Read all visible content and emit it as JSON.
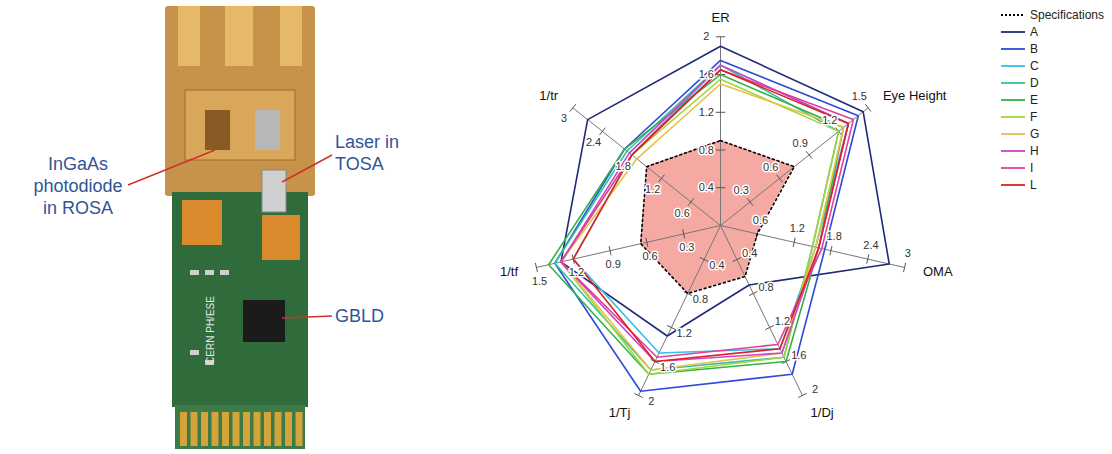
{
  "chart_data": {
    "type": "radar",
    "legend": "right",
    "axes": [
      {
        "label": "ER",
        "lim": [
          0,
          2
        ],
        "ticks": [
          0.4,
          0.8,
          1.2,
          1.6,
          2
        ]
      },
      {
        "label": "Eye Height",
        "lim": [
          0,
          1.5
        ],
        "ticks": [
          0.3,
          0.6,
          0.9,
          1.2,
          1.5
        ]
      },
      {
        "label": "OMA",
        "lim": [
          0,
          3
        ],
        "ticks": [
          0.6,
          1.2,
          1.8,
          2.4,
          3
        ]
      },
      {
        "label": "1/Dj",
        "lim": [
          0,
          2
        ],
        "ticks": [
          0.4,
          0.8,
          1.2,
          1.6,
          2
        ]
      },
      {
        "label": "1/Tj",
        "lim": [
          0,
          2
        ],
        "ticks": [
          0.4,
          0.8,
          1.2,
          1.6,
          2
        ]
      },
      {
        "label": "1/tf",
        "lim": [
          0,
          1.5
        ],
        "ticks": [
          0.3,
          0.6,
          0.9,
          1.2,
          1.5
        ]
      },
      {
        "label": "1/tr",
        "lim": [
          0,
          3
        ],
        "ticks": [
          0.6,
          1.2,
          1.8,
          2.4,
          3
        ]
      }
    ],
    "series": [
      {
        "name": "Specifications",
        "type": "area",
        "color": "#000000",
        "line_style": "dotted",
        "values": [
          0.9,
          0.75,
          0.6,
          0.6,
          0.8,
          0.65,
          1.5
        ]
      },
      {
        "name": "A",
        "color": "#1f2a7a",
        "values": [
          1.9,
          1.45,
          2.75,
          0.7,
          1.3,
          1.3,
          2.7
        ]
      },
      {
        "name": "B",
        "color": "#2c4bd6",
        "values": [
          1.75,
          1.4,
          1.7,
          1.75,
          1.95,
          1.35,
          1.95
        ]
      },
      {
        "name": "C",
        "color": "#33c1e8",
        "values": [
          1.7,
          1.3,
          1.55,
          1.45,
          1.5,
          1.2,
          1.8
        ]
      },
      {
        "name": "D",
        "color": "#2ec4a0",
        "values": [
          1.7,
          1.2,
          1.5,
          1.55,
          1.7,
          1.35,
          1.9
        ]
      },
      {
        "name": "E",
        "color": "#33b24a",
        "values": [
          1.6,
          1.25,
          1.6,
          1.6,
          1.75,
          1.4,
          1.95
        ]
      },
      {
        "name": "F",
        "color": "#a0d63c",
        "values": [
          1.55,
          1.2,
          1.5,
          1.55,
          1.75,
          1.3,
          1.8
        ]
      },
      {
        "name": "G",
        "color": "#e6c04a",
        "values": [
          1.5,
          1.25,
          1.55,
          1.5,
          1.7,
          1.3,
          1.7
        ]
      },
      {
        "name": "H",
        "color": "#cc44cc",
        "values": [
          1.7,
          1.3,
          1.6,
          1.5,
          1.6,
          1.3,
          1.85
        ]
      },
      {
        "name": "I",
        "color": "#e0409a",
        "values": [
          1.65,
          1.35,
          1.65,
          1.4,
          1.55,
          1.3,
          1.8
        ]
      },
      {
        "name": "L",
        "color": "#e02020",
        "values": [
          1.65,
          1.3,
          1.6,
          1.45,
          1.6,
          1.2,
          1.8
        ]
      }
    ]
  },
  "photo": {
    "labels": [
      "InGaAs photodiode in ROSA",
      "Laser in TOSA",
      "GBLD"
    ],
    "board_text": "CERN PH/ESE"
  }
}
